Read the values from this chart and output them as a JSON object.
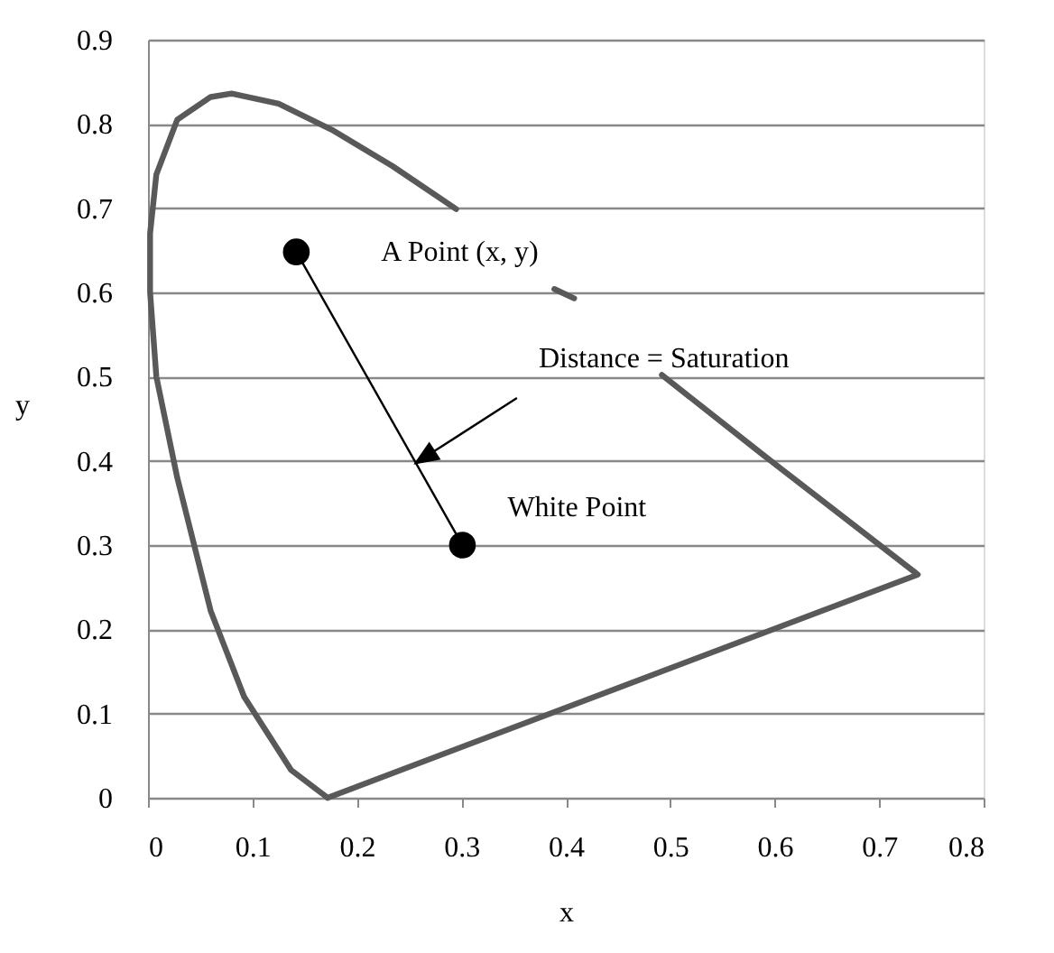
{
  "chart_data": {
    "type": "line",
    "xlabel": "x",
    "ylabel": "y",
    "xlim": [
      0,
      0.8
    ],
    "xticks": [
      0,
      0.1,
      0.2,
      0.3,
      0.4,
      0.5,
      0.6,
      0.7,
      0.8
    ],
    "ylim": [
      0,
      0.9
    ],
    "yticks": [
      0,
      0.1,
      0.2,
      0.3,
      0.4,
      0.5,
      0.6,
      0.7,
      0.8,
      0.9
    ],
    "grid": "y",
    "series": [
      {
        "color": "#595959",
        "x": [
          0.172,
          0.137,
          0.092,
          0.06,
          0.028,
          0.008,
          0.002,
          0.002,
          0.008,
          0.028,
          0.06,
          0.08,
          0.125,
          0.176,
          0.234,
          0.295,
          0.34,
          0.389,
          0.408,
          0.45,
          0.492,
          0.589,
          0.737,
          0.172
        ],
        "values": [
          0.0,
          0.033,
          0.12,
          0.222,
          0.38,
          0.5,
          0.6,
          0.67,
          0.74,
          0.805,
          0.832,
          0.836,
          0.824,
          0.793,
          0.75,
          0.699,
          null,
          0.604,
          0.593,
          null,
          0.502,
          0.407,
          0.265,
          0.0
        ]
      },
      {
        "color": "#000000",
        "marker": "circle",
        "x": [
          0.142,
          0.301
        ],
        "values": [
          0.648,
          0.3
        ]
      }
    ],
    "annotations": [
      {
        "text": "A Point (x, y)",
        "x": 0.142,
        "y": 0.648
      },
      "Distance = Saturation",
      {
        "text": "White Point",
        "x": 0.301,
        "y": 0.3
      }
    ]
  }
}
